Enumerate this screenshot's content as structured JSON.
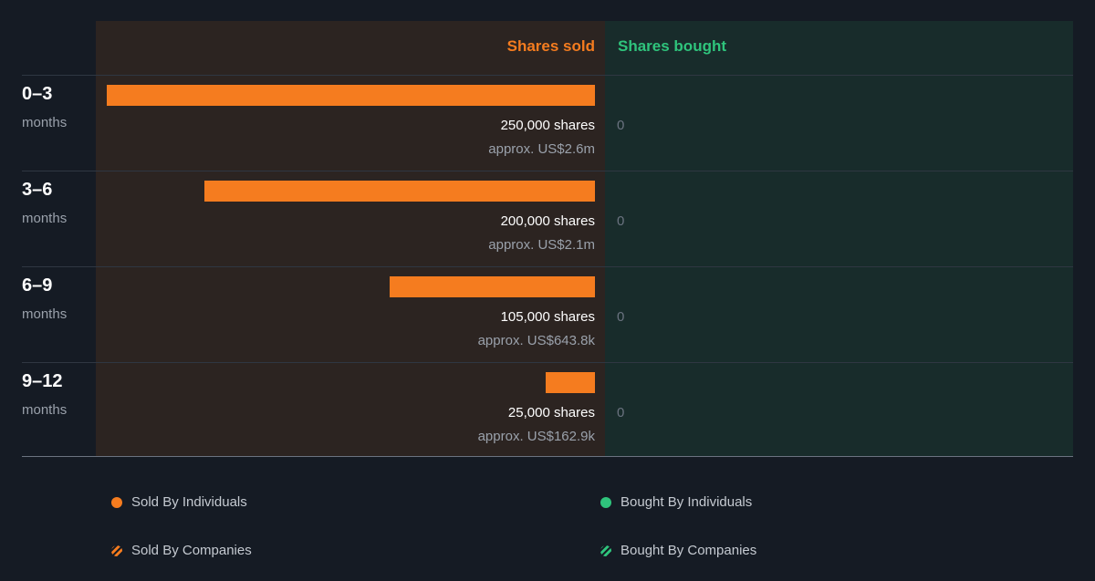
{
  "colors": {
    "sold": "#f57c1f",
    "bought": "#2fc47c",
    "sold_panel": "#2c2421",
    "bought_panel": "#182c2b",
    "background": "#151b24"
  },
  "chart_data": {
    "type": "bar",
    "orientation": "horizontal",
    "headers": {
      "sold": "Shares sold",
      "bought": "Shares bought"
    },
    "categories": [
      "0–3",
      "3–6",
      "6–9",
      "9–12"
    ],
    "category_unit": "months",
    "xlim": [
      0,
      250000
    ],
    "grid": false,
    "legend_position": "bottom",
    "series": [
      {
        "name": "Shares sold",
        "values": [
          250000,
          200000,
          105000,
          25000
        ],
        "labels": [
          "250,000 shares",
          "200,000 shares",
          "105,000 shares",
          "25,000 shares"
        ],
        "approx": [
          "approx. US$2.6m",
          "approx. US$2.1m",
          "approx. US$643.8k",
          "approx. US$162.9k"
        ]
      },
      {
        "name": "Shares bought",
        "values": [
          0,
          0,
          0,
          0
        ],
        "labels": [
          "0",
          "0",
          "0",
          "0"
        ]
      }
    ],
    "legend": [
      {
        "label": "Sold By Individuals",
        "marker": "dot",
        "color": "#f57c1f"
      },
      {
        "label": "Bought By Individuals",
        "marker": "dot",
        "color": "#2fc47c"
      },
      {
        "label": "Sold By Companies",
        "marker": "hatch",
        "color": "#f57c1f"
      },
      {
        "label": "Bought By Companies",
        "marker": "hatch",
        "color": "#2fc47c"
      }
    ]
  }
}
